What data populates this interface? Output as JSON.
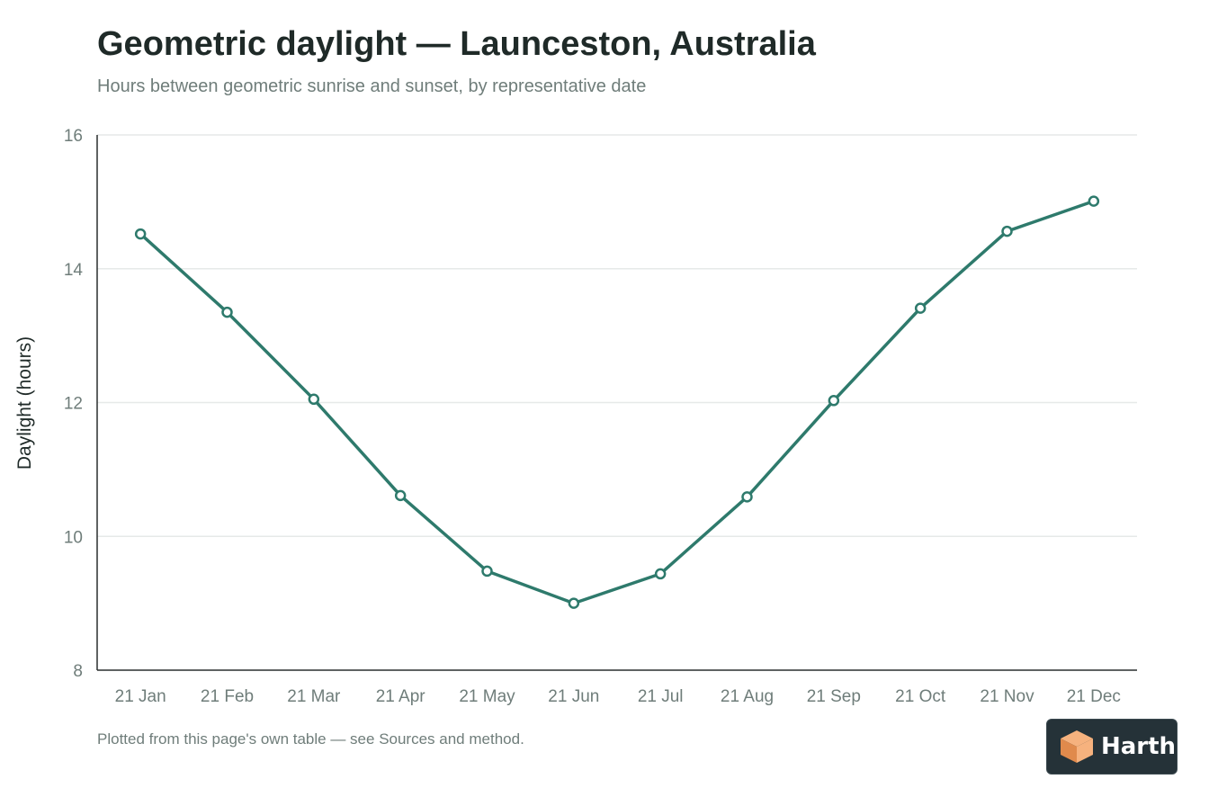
{
  "chart_data": {
    "type": "line",
    "title": "Geometric daylight — Launceston, Australia",
    "subtitle": "Hours between geometric sunrise and sunset, by representative date",
    "xlabel": "",
    "ylabel": "Daylight (hours)",
    "categories": [
      "21 Jan",
      "21 Feb",
      "21 Mar",
      "21 Apr",
      "21 May",
      "21 Jun",
      "21 Jul",
      "21 Aug",
      "21 Sep",
      "21 Oct",
      "21 Nov",
      "21 Dec"
    ],
    "series": [
      {
        "values": [
          14.52,
          13.35,
          12.05,
          10.61,
          9.48,
          9.0,
          9.44,
          10.59,
          12.03,
          13.41,
          14.56,
          15.01
        ]
      }
    ],
    "ylim": [
      8,
      16
    ],
    "yticks": [
      8,
      10,
      12,
      14,
      16
    ],
    "grid": true,
    "legend": "none",
    "colors": {
      "line": "#2e7a6c",
      "marker_fill": "#ffffff",
      "grid": "#e6e9e8",
      "axis": "#2a2f2e",
      "tick_text": "#6f7d7a"
    }
  },
  "footer": {
    "note": "Plotted from this page's own table — see Sources and method."
  },
  "brand": {
    "name": "Harth",
    "logo_icon": "cube-logo-icon",
    "colors": {
      "background": "#253238",
      "logo_light": "#f6b27e",
      "logo_dark": "#e08a4c"
    }
  }
}
